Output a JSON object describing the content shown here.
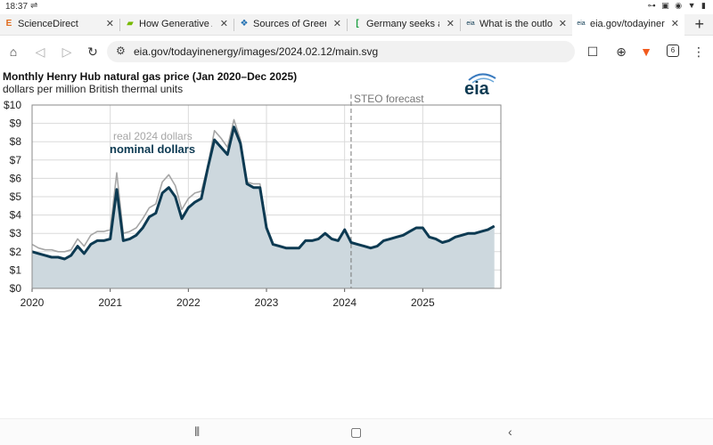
{
  "status": {
    "time": "18:37",
    "left_icon": "sync-icon",
    "right_icons": "⊶ ▣ ◉ ▼ ▮"
  },
  "tabs": [
    {
      "label": "ScienceDirect",
      "favicon": "E",
      "active": false
    },
    {
      "label": "How Generative A",
      "favicon": "▰",
      "active": false
    },
    {
      "label": "Sources of Green",
      "favicon": "❖",
      "active": false
    },
    {
      "label": "Germany seeks a",
      "favicon": "[",
      "active": false
    },
    {
      "label": "What is the outlo",
      "favicon": "eia",
      "active": false
    },
    {
      "label": "eia.gov/todayiner",
      "favicon": "eia",
      "active": true
    }
  ],
  "toolbar": {
    "url": "eia.gov/todayinenergy/images/2024.02.12/main.svg",
    "tab_count": "6"
  },
  "chart_data": {
    "type": "line",
    "title": "Monthly Henry Hub natural gas price (Jan 2020–Dec 2025)",
    "subtitle": "dollars per million British thermal units",
    "brand": "eia",
    "ylim": [
      0,
      10
    ],
    "yticks": [
      "$0",
      "$1",
      "$2",
      "$3",
      "$4",
      "$5",
      "$6",
      "$7",
      "$8",
      "$9",
      "$10"
    ],
    "xticks": [
      "2020",
      "2021",
      "2022",
      "2023",
      "2024",
      "2025"
    ],
    "forecast_label": "STEO forecast",
    "forecast_start": 2024.083,
    "series": [
      {
        "name": "real 2024 dollars",
        "color": "#a6a6a6",
        "values": [
          2.4,
          2.2,
          2.1,
          2.1,
          2.0,
          2.0,
          2.1,
          2.7,
          2.3,
          2.9,
          3.1,
          3.1,
          3.2,
          6.3,
          3.0,
          3.1,
          3.3,
          3.8,
          4.4,
          4.6,
          5.8,
          6.2,
          5.6,
          4.3,
          4.9,
          5.2,
          5.3,
          6.7,
          8.6,
          8.2,
          7.7,
          9.2,
          8.1,
          5.8,
          5.7,
          5.7,
          3.4,
          2.4,
          2.3,
          2.2,
          2.2,
          2.2,
          2.6,
          2.6,
          2.7,
          3.0,
          2.7,
          2.6,
          3.2,
          2.5,
          2.4,
          2.3,
          2.2,
          2.3,
          2.6,
          2.7,
          2.8,
          2.9,
          3.1,
          3.3,
          3.3,
          2.8,
          2.7,
          2.5,
          2.6,
          2.8,
          2.9,
          3.0,
          3.0,
          3.1,
          3.2,
          3.4
        ]
      },
      {
        "name": "nominal dollars",
        "color": "#0d3a52",
        "values": [
          2.0,
          1.9,
          1.8,
          1.7,
          1.7,
          1.6,
          1.8,
          2.3,
          1.9,
          2.4,
          2.6,
          2.6,
          2.7,
          5.4,
          2.6,
          2.7,
          2.9,
          3.3,
          3.9,
          4.1,
          5.2,
          5.5,
          5.0,
          3.8,
          4.4,
          4.7,
          4.9,
          6.6,
          8.1,
          7.7,
          7.3,
          8.8,
          7.9,
          5.7,
          5.5,
          5.5,
          3.3,
          2.4,
          2.3,
          2.2,
          2.2,
          2.2,
          2.6,
          2.6,
          2.7,
          3.0,
          2.7,
          2.6,
          3.2,
          2.5,
          2.4,
          2.3,
          2.2,
          2.3,
          2.6,
          2.7,
          2.8,
          2.9,
          3.1,
          3.3,
          3.3,
          2.8,
          2.7,
          2.5,
          2.6,
          2.8,
          2.9,
          3.0,
          3.0,
          3.1,
          3.2,
          3.4
        ]
      }
    ],
    "fill_color": "#cdd8de",
    "grid": true
  }
}
